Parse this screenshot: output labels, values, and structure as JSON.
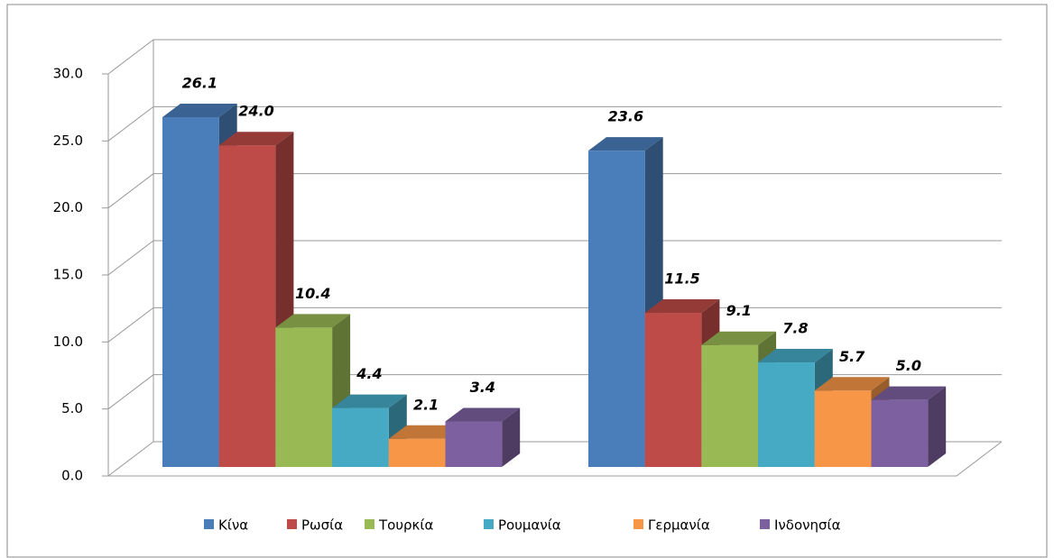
{
  "chart_data": {
    "type": "bar3d",
    "categories": [
      null,
      null
    ],
    "ylim": [
      0,
      30
    ],
    "yticks": [
      {
        "value": 0,
        "label": "0.0"
      },
      {
        "value": 5,
        "label": "5.0"
      },
      {
        "value": 10,
        "label": "10.0"
      },
      {
        "value": 15,
        "label": "15.0"
      },
      {
        "value": 20,
        "label": "20.0"
      },
      {
        "value": 25,
        "label": "25.0"
      },
      {
        "value": 30,
        "label": "30.0"
      }
    ],
    "grid": true,
    "legend": "bottom",
    "series": [
      {
        "name": "Κίνα",
        "color": "#4a7ebb",
        "values": [
          26.1,
          23.6
        ],
        "value_labels": [
          "26.1",
          "23.6"
        ]
      },
      {
        "name": "Ρωσία",
        "color": "#be4b48",
        "values": [
          24.0,
          11.5
        ],
        "value_labels": [
          "24.0",
          "11.5"
        ]
      },
      {
        "name": "Τουρκία",
        "color": "#98b954",
        "values": [
          10.4,
          9.1
        ],
        "value_labels": [
          "10.4",
          "9.1"
        ]
      },
      {
        "name": "Ρουμανία",
        "color": "#46aac5",
        "values": [
          4.4,
          7.8
        ],
        "value_labels": [
          "4.4",
          "7.8"
        ]
      },
      {
        "name": "Γερμανία",
        "color": "#f79646",
        "values": [
          2.1,
          5.7
        ],
        "value_labels": [
          "2.1",
          "5.7"
        ]
      },
      {
        "name": "Ινδονησία",
        "color": "#7d60a0",
        "values": [
          3.4,
          5.0
        ],
        "value_labels": [
          "3.4",
          "5.0"
        ]
      }
    ]
  }
}
